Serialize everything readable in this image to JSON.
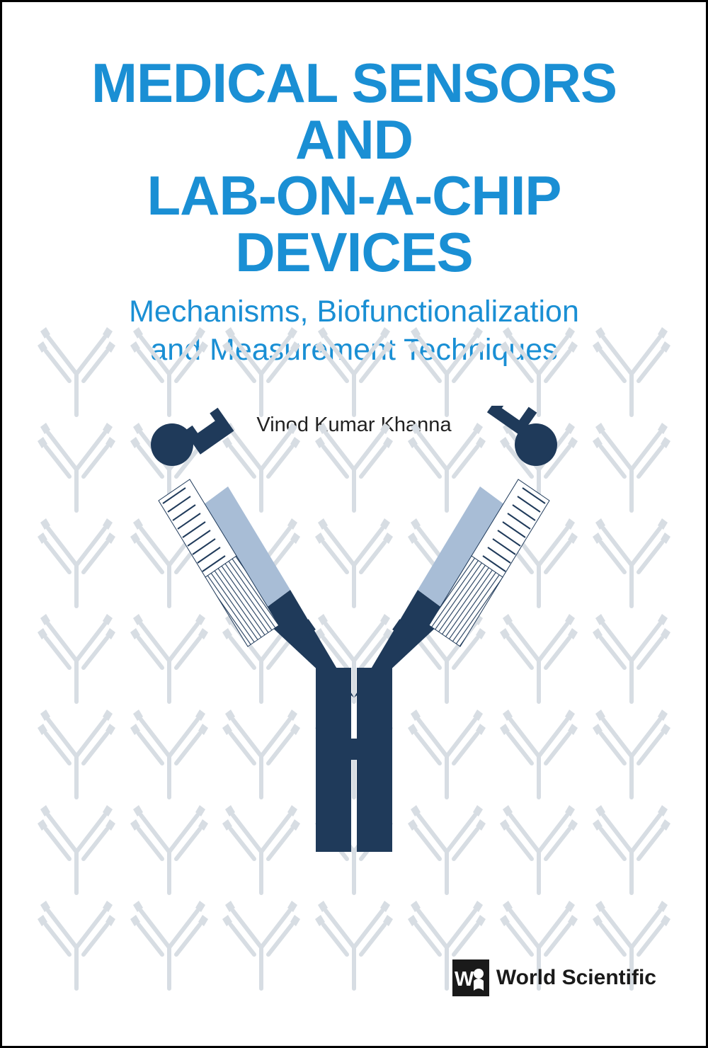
{
  "title": {
    "line1": "MEDICAL SENSORS AND",
    "line2": "LAB-ON-A-CHIP DEVICES",
    "color": "#1a8fd4",
    "fontsize": 78
  },
  "subtitle": {
    "line1": "Mechanisms, Biofunctionalization",
    "line2": "and Measurement Techniques",
    "color": "#1a8fd4",
    "fontsize": 43
  },
  "author": {
    "name": "Vinod Kumar Khanna",
    "fontsize": 29,
    "color": "#222222"
  },
  "publisher": {
    "name": "World Scientific",
    "fontsize": 30,
    "color": "#1a1a1a",
    "logo_fill": "#1a1a1a"
  },
  "antibody_main": {
    "stem_color": "#1f3a5a",
    "arm_upper_color": "#a8bdd6",
    "arm_lower_color": "#1f3a5a",
    "chain_upper_fill": "#ffffff",
    "chain_stroke": "#1f3a5a",
    "antigen_color": "#1f3a5a"
  },
  "pattern": {
    "stroke": "#d7dde3",
    "rows": 7,
    "cols": 7
  },
  "background": "#ffffff",
  "border_color": "#000000"
}
